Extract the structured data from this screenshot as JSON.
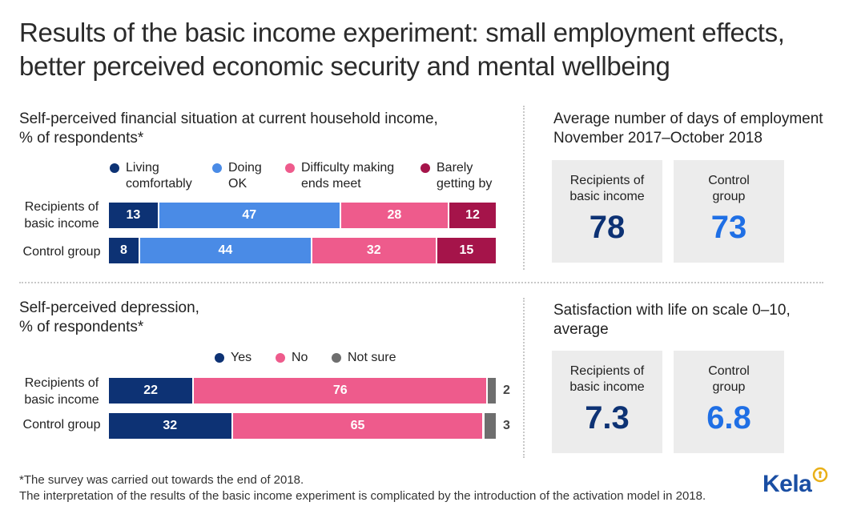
{
  "title": {
    "line1": "Results of the basic income experiment: small employment effects,",
    "line2": "better perceived economic security and mental wellbeing"
  },
  "colors": {
    "dark_navy": "#0d3274",
    "mid_blue": "#4a8be6",
    "pink": "#ee5b8c",
    "maroon": "#a5144a",
    "grey": "#6e6e6e",
    "bright_blue": "#1f6fe5",
    "box_bg": "#ececec"
  },
  "chart_data": [
    {
      "type": "bar",
      "orientation": "horizontal-stacked",
      "title": "Self-perceived financial situation at current household income, % of respondents*",
      "title_lines": [
        "Self-perceived financial situation at current household income,",
        "% of respondents*"
      ],
      "categories": [
        "Recipients of basic income",
        "Control group"
      ],
      "series": [
        {
          "name": "Living comfortably",
          "legend_lines": [
            "Living",
            "comfortably"
          ],
          "color": "#0d3274",
          "values": [
            13,
            8
          ]
        },
        {
          "name": "Doing OK",
          "legend_lines": [
            "Doing",
            "OK"
          ],
          "color": "#4a8be6",
          "values": [
            47,
            44
          ]
        },
        {
          "name": "Difficulty making ends meet",
          "legend_lines": [
            "Difficulty making",
            "ends meet"
          ],
          "color": "#ee5b8c",
          "values": [
            28,
            32
          ]
        },
        {
          "name": "Barely getting by",
          "legend_lines": [
            "Barely",
            "getting by"
          ],
          "color": "#a5144a",
          "values": [
            12,
            15
          ]
        }
      ],
      "xlim": [
        0,
        100
      ]
    },
    {
      "type": "bar",
      "orientation": "horizontal-stacked",
      "title": "Self-perceived depression, % of respondents*",
      "title_lines": [
        "Self-perceived depression,",
        "% of respondents*"
      ],
      "categories": [
        "Recipients of basic income",
        "Control group"
      ],
      "series": [
        {
          "name": "Yes",
          "legend_lines": [
            "Yes"
          ],
          "color": "#0d3274",
          "values": [
            22,
            32
          ]
        },
        {
          "name": "No",
          "legend_lines": [
            "No"
          ],
          "color": "#ee5b8c",
          "values": [
            76,
            65
          ]
        },
        {
          "name": "Not sure",
          "legend_lines": [
            "Not sure"
          ],
          "color": "#6e6e6e",
          "values": [
            2,
            3
          ]
        }
      ],
      "xlim": [
        0,
        100
      ]
    },
    {
      "type": "table",
      "title": "Average number of days of employment November 2017–October 2018",
      "title_lines": [
        "Average number of days of employment",
        "November 2017–October 2018"
      ],
      "groups": [
        {
          "label_lines": [
            "Recipients of",
            "basic income"
          ],
          "value": "78"
        },
        {
          "label_lines": [
            "Control",
            "group"
          ],
          "value": "73"
        }
      ]
    },
    {
      "type": "table",
      "title": "Satisfaction with life on scale 0–10, average",
      "title_lines": [
        "Satisfaction with life on scale 0–10,",
        "average"
      ],
      "groups": [
        {
          "label_lines": [
            "Recipients of",
            "basic income"
          ],
          "value": "7.3"
        },
        {
          "label_lines": [
            "Control",
            "group"
          ],
          "value": "6.8"
        }
      ]
    }
  ],
  "row_labels": {
    "recipients_lines": [
      "Recipients of",
      "basic income"
    ],
    "control": "Control group"
  },
  "footnotes": {
    "line1": "*The survey was carried out towards the end of 2018.",
    "line2": "The interpretation of the results of the basic income experiment is complicated by the introduction of the activation model in 2018."
  },
  "logo": {
    "text": "Kela",
    "icon": "kela-emblem-icon"
  }
}
